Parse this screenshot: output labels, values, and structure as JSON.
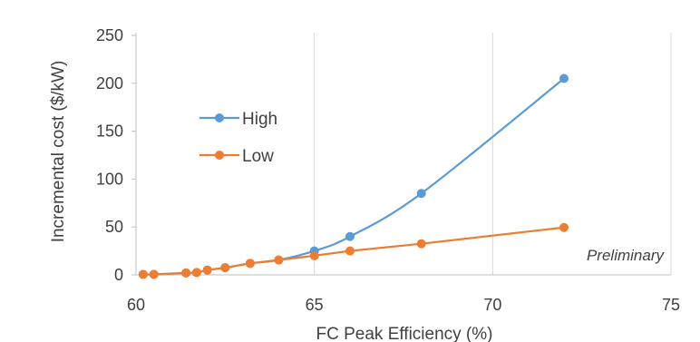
{
  "chart_data": {
    "type": "line",
    "xlabel": "FC Peak Efficiency (%)",
    "ylabel": "Incremental cost ($/kW)",
    "xlim": [
      60,
      75
    ],
    "ylim": [
      0,
      250
    ],
    "xticks": [
      60,
      65,
      70,
      75
    ],
    "yticks": [
      0,
      50,
      100,
      150,
      200,
      250
    ],
    "grid": "vertical",
    "legend_position": "upper-left",
    "annotation": "Preliminary",
    "series": [
      {
        "name": "High",
        "color": "#5b9bd5",
        "smooth": true,
        "x": [
          60.2,
          60.5,
          61.4,
          61.7,
          62.0,
          62.5,
          63.2,
          64.0,
          65.0,
          66.0,
          68.0,
          72.0
        ],
        "y": [
          0.5,
          0.5,
          2,
          2.5,
          5,
          7.5,
          12,
          15.5,
          25,
          40,
          85,
          205
        ]
      },
      {
        "name": "Low",
        "color": "#ed7d31",
        "smooth": false,
        "x": [
          60.2,
          60.5,
          61.4,
          61.7,
          62.0,
          62.5,
          63.2,
          64.0,
          65.0,
          66.0,
          68.0,
          72.0
        ],
        "y": [
          0.5,
          0.5,
          2,
          2.5,
          5,
          7.5,
          12,
          15.5,
          20,
          25,
          32.5,
          49.5
        ]
      }
    ]
  }
}
